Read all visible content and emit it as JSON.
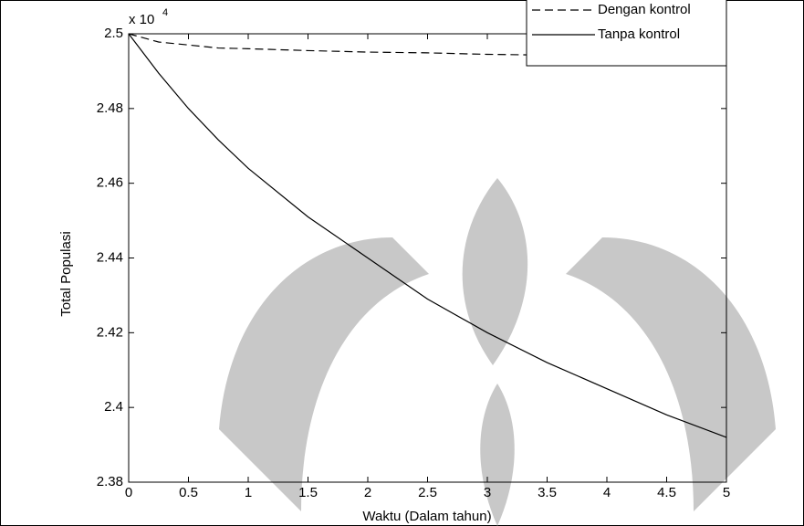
{
  "chart_data": {
    "type": "line",
    "x_label": "Waktu (Dalam tahun)",
    "y_label": "Total Populasi",
    "y_multiplier": "x 10",
    "y_multiplier_exponent": "4",
    "x": [
      0,
      0.25,
      0.5,
      0.75,
      1,
      1.5,
      2,
      2.5,
      3,
      3.5,
      4,
      4.5,
      5
    ],
    "series": [
      {
        "name": "Dengan kontrol",
        "color": "#000000",
        "dash": true,
        "values": [
          2.5,
          2.4978,
          2.497,
          2.4962,
          2.496,
          2.4955,
          2.4951,
          2.4949,
          2.4945,
          2.4943,
          2.494,
          2.4938,
          2.4935
        ]
      },
      {
        "name": "Tanpa kontrol",
        "color": "#000000",
        "dash": false,
        "values": [
          2.5,
          2.4895,
          2.48,
          2.4716,
          2.464,
          2.451,
          2.44,
          2.429,
          2.42,
          2.412,
          2.405,
          2.398,
          2.392
        ]
      }
    ],
    "xlim": [
      0,
      5
    ],
    "xticks": [
      0,
      0.5,
      1,
      1.5,
      2,
      2.5,
      3,
      3.5,
      4,
      4.5,
      5
    ],
    "ylim": [
      2.38,
      2.5
    ],
    "yticks": [
      2.38,
      2.4,
      2.42,
      2.44,
      2.46,
      2.48,
      2.5
    ],
    "grid": false,
    "legend": "top-right"
  }
}
